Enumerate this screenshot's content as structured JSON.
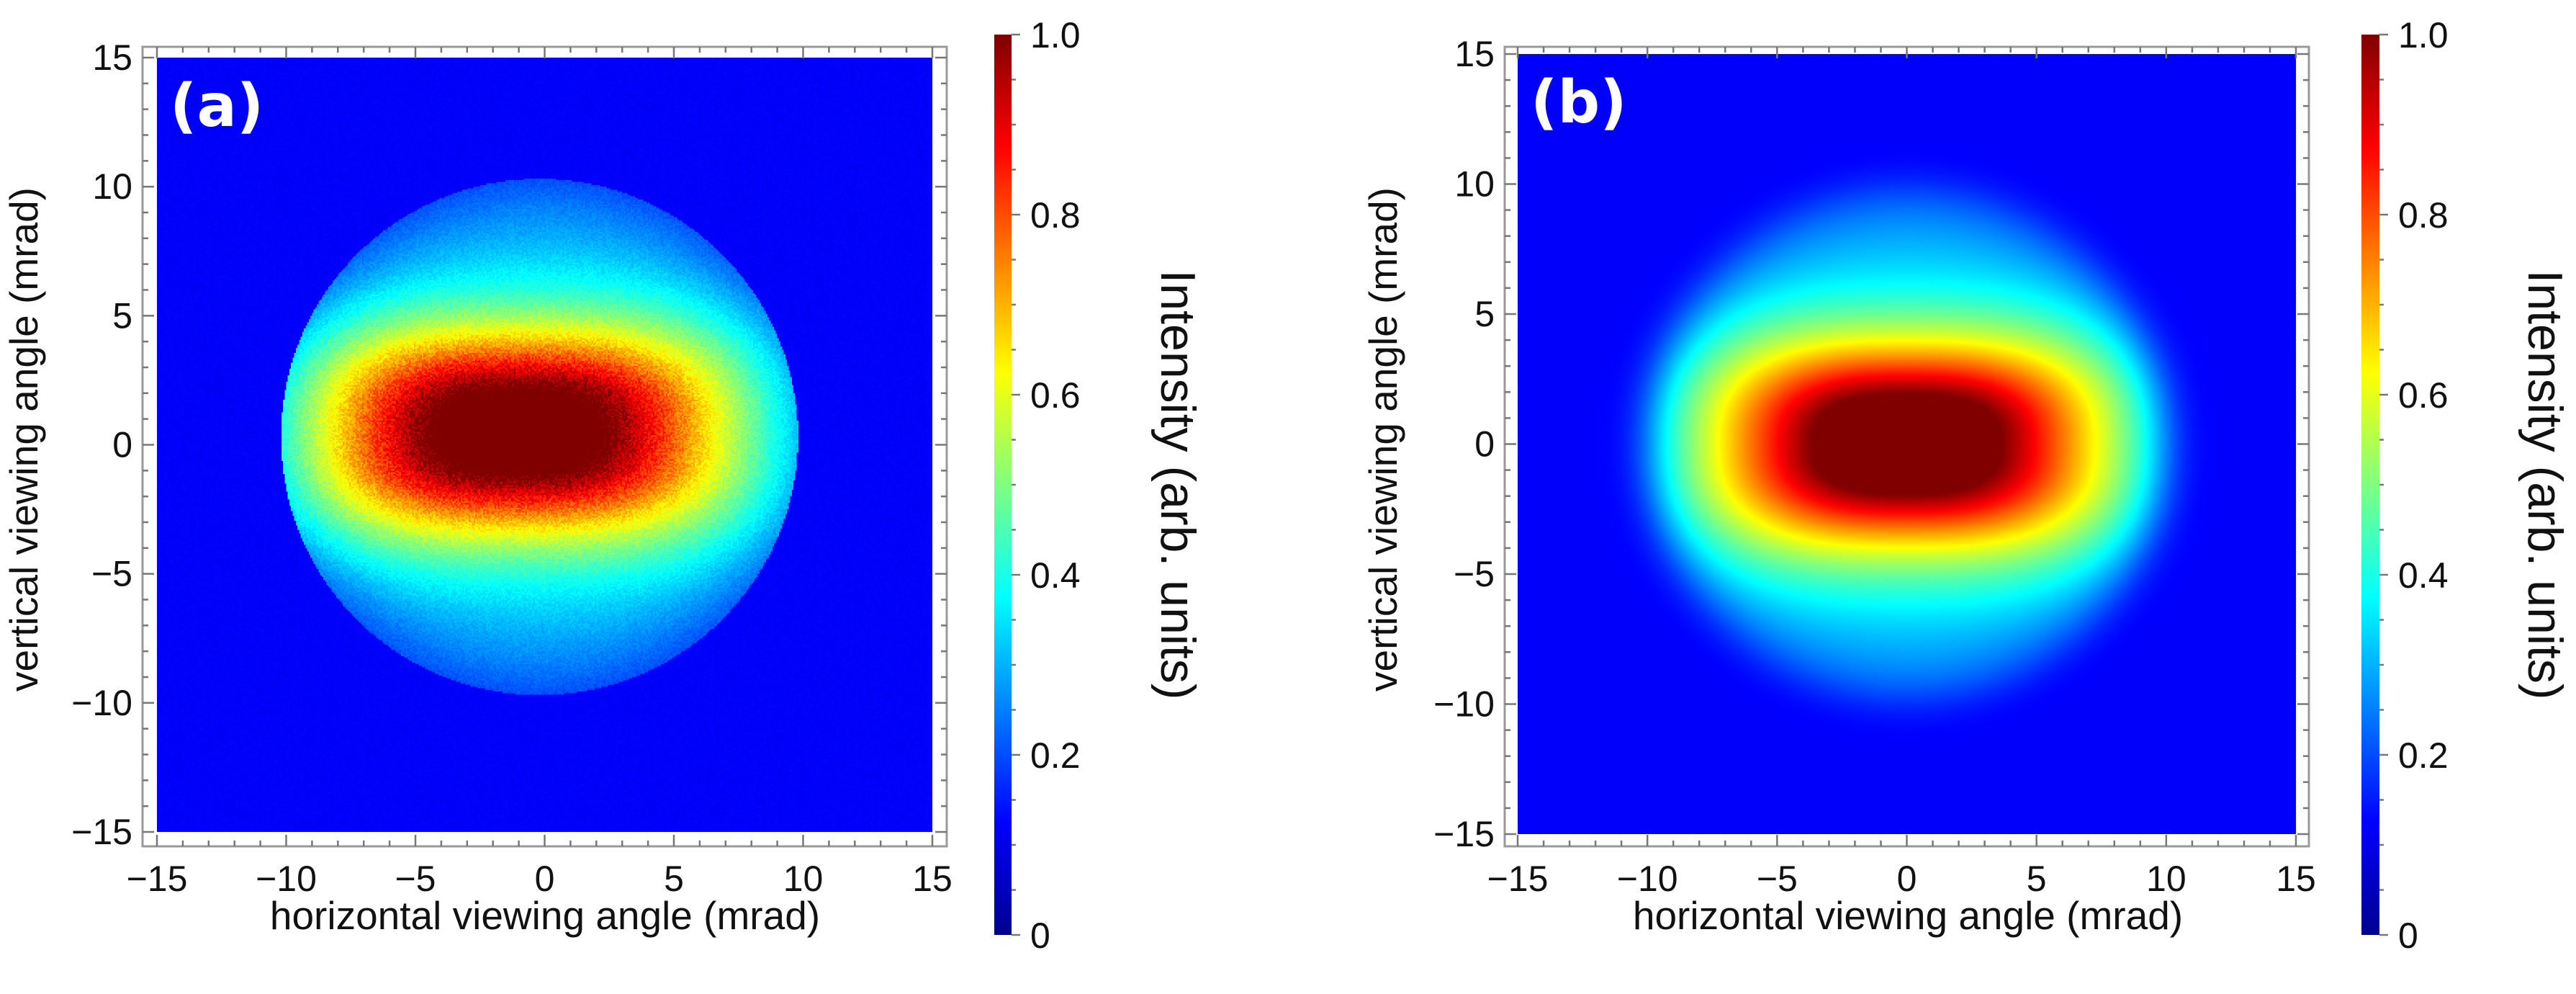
{
  "chart_data": [
    {
      "type": "heatmap",
      "panel_label": "(a)",
      "xlabel": "horizontal viewing angle (mrad)",
      "ylabel": "vertical viewing angle (mrad)",
      "xlim": [
        -15,
        15
      ],
      "ylim": [
        -15,
        15
      ],
      "xticks": [
        -15,
        -10,
        -5,
        0,
        5,
        10,
        15
      ],
      "yticks": [
        -15,
        -10,
        -5,
        0,
        5,
        10,
        15
      ],
      "xtick_labels": [
        "−15",
        "−10",
        "−5",
        "0",
        "5",
        "10",
        "15"
      ],
      "ytick_labels": [
        "−15",
        "−10",
        "−5",
        "0",
        "5",
        "10",
        "15"
      ],
      "colormap": "jet",
      "background_value": 0.12,
      "peak_value": 1.0,
      "peak_center": [
        -1,
        0.5
      ],
      "core_half_widths": [
        7.0,
        3.5
      ],
      "aperture_center": [
        -0.2,
        0.3
      ],
      "aperture_radius": 10.0,
      "noisy": true,
      "colorbar": {
        "label": "Intensity (arb. units)",
        "range": [
          0,
          1
        ],
        "ticks": [
          0,
          0.2,
          0.4,
          0.6,
          0.8,
          1.0
        ],
        "tick_labels": [
          "0",
          "0.2",
          "0.4",
          "0.6",
          "0.8",
          "1.0"
        ]
      }
    },
    {
      "type": "heatmap",
      "panel_label": "(b)",
      "xlabel": "horizontal viewing angle (mrad)",
      "ylabel": "vertical viewing angle (mrad)",
      "xlim": [
        -15,
        15
      ],
      "ylim": [
        -15,
        15
      ],
      "xticks": [
        -15,
        -10,
        -5,
        0,
        5,
        10,
        15
      ],
      "yticks": [
        -15,
        -10,
        -5,
        0,
        5,
        10,
        15
      ],
      "xtick_labels": [
        "−15",
        "−10",
        "−5",
        "0",
        "5",
        "10",
        "15"
      ],
      "ytick_labels": [
        "−15",
        "−10",
        "−5",
        "0",
        "5",
        "10",
        "15"
      ],
      "colormap": "jet",
      "background_value": 0.12,
      "peak_value": 1.0,
      "peak_center": [
        0,
        0
      ],
      "core_half_widths": [
        6.8,
        3.6
      ],
      "aperture_center": [
        0,
        0
      ],
      "aperture_radius": 10.2,
      "noisy": false,
      "colorbar": {
        "label": "Intensity (arb. units)",
        "range": [
          0,
          1
        ],
        "ticks": [
          0,
          0.2,
          0.4,
          0.6,
          0.8,
          1.0
        ],
        "tick_labels": [
          "0",
          "0.2",
          "0.4",
          "0.6",
          "0.8",
          "1.0"
        ]
      }
    }
  ]
}
